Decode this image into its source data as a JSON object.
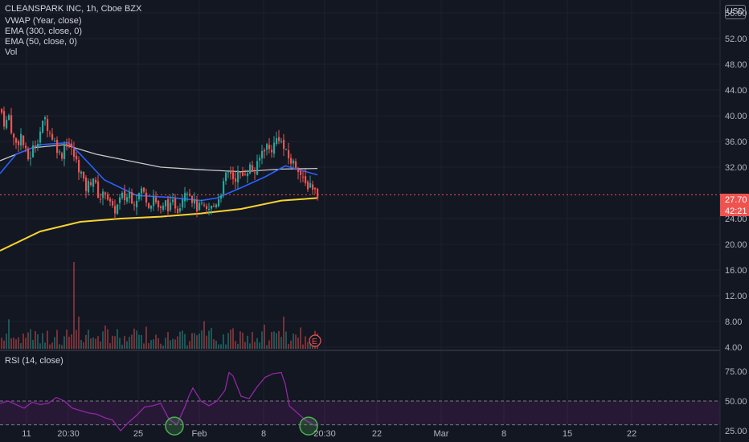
{
  "header": {
    "title": "CLEANSPARK INC, 1h, Cboe BZX",
    "indicators": [
      "VWAP (Year, close)",
      "EMA (300, close, 0)",
      "EMA (50, close, 0)",
      "Vol"
    ],
    "currency": "USD"
  },
  "rsi": {
    "label": "RSI (14, close)"
  },
  "badges": {
    "price": "27.70",
    "countdown": "42:21",
    "earnings": "E"
  },
  "colors": {
    "background": "#131722",
    "up": "#26a69a",
    "down": "#ef5350",
    "vwap": "#f7d330",
    "ema300": "#c8c8c8",
    "ema50": "#2962ff",
    "rsi": "#9c27b0",
    "highlight": "#4caf50"
  },
  "chart_data": [
    {
      "type": "candlestick",
      "title": "CLEANSPARK INC, 1h, Cboe BZX",
      "x_tick_labels": [
        "11",
        "20:30",
        "25",
        "Feb",
        "8",
        "20:30",
        "22",
        "Mar",
        "8",
        "15",
        "22"
      ],
      "y_tick_labels": [
        "56.00",
        "52.00",
        "48.00",
        "44.00",
        "40.00",
        "36.00",
        "32.00",
        "24.00",
        "20.00",
        "16.00",
        "12.00",
        "8.00",
        "4.00"
      ],
      "ylim": [
        2,
        58
      ],
      "last_price": 27.7,
      "close_path": [
        [
          0,
          41.0
        ],
        [
          5,
          38.5
        ],
        [
          10,
          40.0
        ],
        [
          15,
          36.5
        ],
        [
          20,
          35.5
        ],
        [
          25,
          37.0
        ],
        [
          30,
          34.5
        ],
        [
          35,
          33.0
        ],
        [
          40,
          35.0
        ],
        [
          45,
          36.0
        ],
        [
          50,
          38.0
        ],
        [
          55,
          39.5
        ],
        [
          60,
          37.5
        ],
        [
          65,
          36.5
        ],
        [
          70,
          35.0
        ],
        [
          75,
          33.5
        ],
        [
          80,
          36.0
        ],
        [
          85,
          35.5
        ],
        [
          90,
          34.0
        ],
        [
          95,
          32.5
        ],
        [
          100,
          31.0
        ],
        [
          105,
          28.5
        ],
        [
          110,
          29.5
        ],
        [
          115,
          30.5
        ],
        [
          120,
          28.0
        ],
        [
          125,
          27.0
        ],
        [
          130,
          28.5
        ],
        [
          135,
          26.5
        ],
        [
          140,
          25.0
        ],
        [
          145,
          26.0
        ],
        [
          150,
          27.5
        ],
        [
          155,
          27.0
        ],
        [
          160,
          28.0
        ],
        [
          165,
          26.5
        ],
        [
          170,
          27.5
        ],
        [
          175,
          28.5
        ],
        [
          180,
          27.5
        ],
        [
          185,
          26.0
        ],
        [
          190,
          27.5
        ],
        [
          195,
          26.0
        ],
        [
          200,
          25.0
        ],
        [
          205,
          26.5
        ],
        [
          210,
          25.5
        ],
        [
          215,
          26.5
        ],
        [
          220,
          25.5
        ],
        [
          225,
          27.0
        ],
        [
          230,
          29.0
        ],
        [
          235,
          28.0
        ],
        [
          240,
          26.5
        ],
        [
          245,
          25.5
        ],
        [
          250,
          26.0
        ],
        [
          255,
          25.0
        ],
        [
          260,
          25.5
        ],
        [
          265,
          26.0
        ],
        [
          270,
          27.0
        ],
        [
          275,
          28.5
        ],
        [
          280,
          30.5
        ],
        [
          285,
          31.5
        ],
        [
          290,
          30.0
        ],
        [
          295,
          31.0
        ],
        [
          300,
          30.5
        ],
        [
          305,
          31.5
        ],
        [
          310,
          32.0
        ],
        [
          315,
          31.0
        ],
        [
          320,
          32.5
        ],
        [
          325,
          34.5
        ],
        [
          330,
          35.5
        ],
        [
          335,
          34.5
        ],
        [
          340,
          35.5
        ],
        [
          345,
          37.0
        ],
        [
          350,
          35.5
        ],
        [
          355,
          34.0
        ],
        [
          360,
          33.0
        ],
        [
          365,
          32.5
        ],
        [
          370,
          32.0
        ],
        [
          375,
          30.0
        ],
        [
          380,
          29.0
        ],
        [
          385,
          29.5
        ],
        [
          390,
          28.5
        ],
        [
          395,
          27.7
        ]
      ],
      "series": [
        {
          "name": "VWAP (Year, close)",
          "points": [
            [
              0,
              19.0
            ],
            [
              50,
              22.0
            ],
            [
              100,
              23.5
            ],
            [
              150,
              24.0
            ],
            [
              200,
              24.3
            ],
            [
              250,
              24.8
            ],
            [
              300,
              25.5
            ],
            [
              350,
              26.8
            ],
            [
              395,
              27.2
            ]
          ]
        },
        {
          "name": "EMA (300, close, 0)",
          "points": [
            [
              0,
              33.0
            ],
            [
              40,
              35.0
            ],
            [
              80,
              35.5
            ],
            [
              120,
              34.0
            ],
            [
              160,
              33.0
            ],
            [
              200,
              32.0
            ],
            [
              250,
              31.6
            ],
            [
              300,
              31.3
            ],
            [
              350,
              31.7
            ],
            [
              395,
              31.8
            ]
          ]
        },
        {
          "name": "EMA (50, close, 0)",
          "points": [
            [
              0,
              31.0
            ],
            [
              20,
              34.0
            ],
            [
              50,
              35.5
            ],
            [
              85,
              35.8
            ],
            [
              100,
              34.0
            ],
            [
              130,
              30.0
            ],
            [
              170,
              27.6
            ],
            [
              210,
              27.3
            ],
            [
              250,
              26.8
            ],
            [
              270,
              27.2
            ],
            [
              300,
              28.8
            ],
            [
              330,
              30.5
            ],
            [
              355,
              32.2
            ],
            [
              375,
              31.5
            ],
            [
              395,
              30.8
            ]
          ]
        }
      ],
      "volume_label": "Vol"
    },
    {
      "type": "line",
      "title": "RSI (14, close)",
      "y_tick_labels": [
        "75.00",
        "50.00",
        "25.00"
      ],
      "ylim": [
        10,
        90
      ],
      "bands": [
        30,
        50
      ],
      "points": [
        [
          0,
          48
        ],
        [
          10,
          50
        ],
        [
          20,
          47
        ],
        [
          30,
          44
        ],
        [
          40,
          49
        ],
        [
          50,
          47
        ],
        [
          60,
          48
        ],
        [
          70,
          53
        ],
        [
          80,
          50
        ],
        [
          90,
          44
        ],
        [
          100,
          42
        ],
        [
          110,
          40
        ],
        [
          120,
          39
        ],
        [
          130,
          36
        ],
        [
          140,
          34
        ],
        [
          150,
          25
        ],
        [
          160,
          32
        ],
        [
          170,
          38
        ],
        [
          180,
          45
        ],
        [
          190,
          46
        ],
        [
          200,
          48
        ],
        [
          210,
          35
        ],
        [
          220,
          30
        ],
        [
          230,
          45
        ],
        [
          235,
          54
        ],
        [
          240,
          61
        ],
        [
          250,
          50
        ],
        [
          260,
          46
        ],
        [
          270,
          50
        ],
        [
          280,
          59
        ],
        [
          285,
          74
        ],
        [
          290,
          71
        ],
        [
          300,
          54
        ],
        [
          310,
          52
        ],
        [
          320,
          62
        ],
        [
          330,
          70
        ],
        [
          340,
          73
        ],
        [
          350,
          74
        ],
        [
          355,
          64
        ],
        [
          360,
          46
        ],
        [
          370,
          40
        ],
        [
          380,
          34
        ],
        [
          390,
          30
        ],
        [
          395,
          29
        ]
      ],
      "highlights": [
        {
          "x": 217,
          "y": 29
        },
        {
          "x": 384,
          "y": 29
        }
      ]
    }
  ]
}
